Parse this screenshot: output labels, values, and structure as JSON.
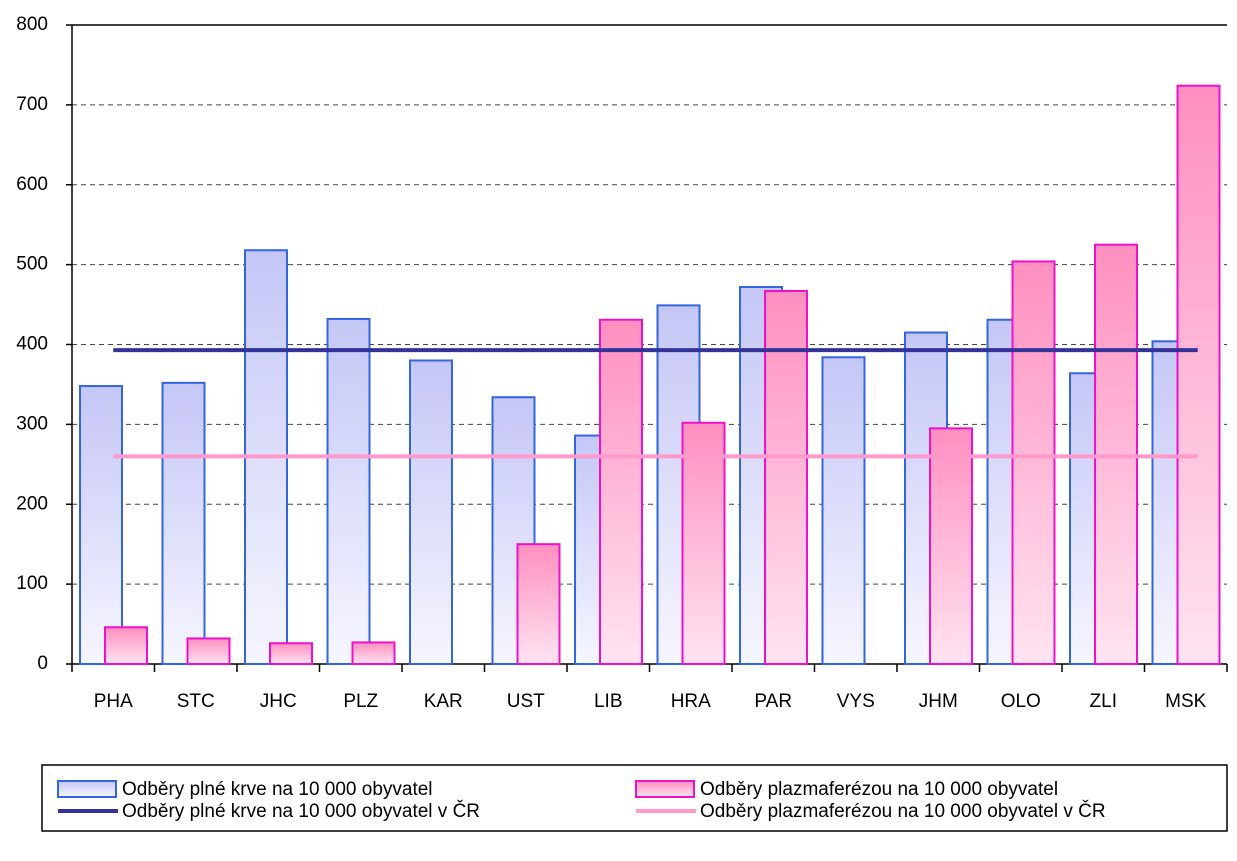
{
  "chart_data": {
    "type": "bar",
    "categories": [
      "PHA",
      "STC",
      "JHC",
      "PLZ",
      "KAR",
      "UST",
      "LIB",
      "HRA",
      "PAR",
      "VYS",
      "JHM",
      "OLO",
      "ZLI",
      "MSK"
    ],
    "series": [
      {
        "name": "Odběry plné krve na 10 000 obyvatel",
        "color": "#3366dd",
        "values": [
          348,
          352,
          518,
          432,
          380,
          334,
          286,
          449,
          472,
          384,
          415,
          431,
          364,
          404
        ]
      },
      {
        "name": "Odběry plazmaferézou na 10 000 obyvatel",
        "color": "#ee11cc",
        "values": [
          46,
          32,
          26,
          27,
          null,
          150,
          431,
          302,
          467,
          null,
          295,
          504,
          525,
          724
        ]
      }
    ],
    "reference_lines": [
      {
        "name": "Odběry plné krve na 10 000 obyvatel v ČR",
        "color": "#333399",
        "value": 393
      },
      {
        "name": "Odběry plazmaferézou na 10 000 obyvatel v ČR",
        "color": "#ff99cc",
        "value": 260
      }
    ],
    "ylim": [
      0,
      800
    ],
    "yticks": [
      0,
      100,
      200,
      300,
      400,
      500,
      600,
      700,
      800
    ],
    "grid": true
  }
}
